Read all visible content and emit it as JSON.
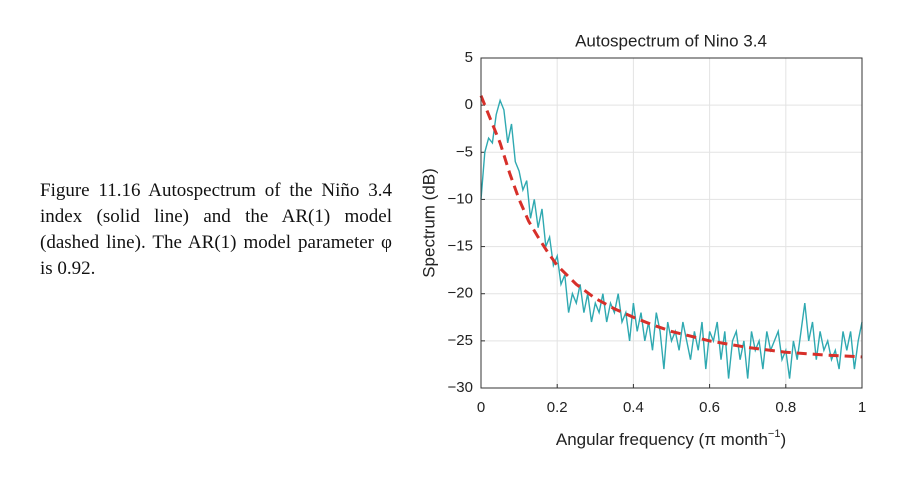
{
  "caption": "Figure 11.16 Autospectrum of the Niño 3.4 index (solid line) and the AR(1) model (dashed line). The AR(1) model parameter φ is 0.92.",
  "chart_data": {
    "type": "line",
    "title": "Autospectrum of Nino 3.4",
    "xlabel": [
      "Angular frequency  (π month",
      "−1",
      ")"
    ],
    "ylabel": "Spectrum (dB)",
    "xlim": [
      0,
      1
    ],
    "ylim": [
      -30,
      5
    ],
    "xticks": [
      0,
      0.2,
      0.4,
      0.6,
      0.8,
      1
    ],
    "yticks": [
      {
        "value": -30,
        "label": "−30"
      },
      {
        "value": -25,
        "label": "−25"
      },
      {
        "value": -20,
        "label": "−20"
      },
      {
        "value": -15,
        "label": "−15"
      },
      {
        "value": -10,
        "label": "−10"
      },
      {
        "value": -5,
        "label": "−5"
      },
      0,
      5
    ],
    "grid": true,
    "series": [
      {
        "color": "#2fa9b1",
        "line_style": "solid",
        "x": [
          0,
          0.01,
          0.02,
          0.03,
          0.04,
          0.05,
          0.06,
          0.07,
          0.08,
          0.09,
          0.1,
          0.11,
          0.12,
          0.13,
          0.14,
          0.15,
          0.16,
          0.17,
          0.18,
          0.19,
          0.2,
          0.21,
          0.22,
          0.23,
          0.24,
          0.25,
          0.26,
          0.27,
          0.28,
          0.29,
          0.3,
          0.31,
          0.32,
          0.33,
          0.34,
          0.35,
          0.36,
          0.37,
          0.38,
          0.39,
          0.4,
          0.41,
          0.42,
          0.43,
          0.44,
          0.45,
          0.46,
          0.47,
          0.48,
          0.49,
          0.5,
          0.51,
          0.52,
          0.53,
          0.54,
          0.55,
          0.56,
          0.57,
          0.58,
          0.59,
          0.6,
          0.61,
          0.62,
          0.63,
          0.64,
          0.65,
          0.66,
          0.67,
          0.68,
          0.69,
          0.7,
          0.71,
          0.72,
          0.73,
          0.74,
          0.75,
          0.76,
          0.77,
          0.78,
          0.79,
          0.8,
          0.81,
          0.82,
          0.83,
          0.84,
          0.85,
          0.86,
          0.87,
          0.88,
          0.89,
          0.9,
          0.91,
          0.92,
          0.93,
          0.94,
          0.95,
          0.96,
          0.97,
          0.98,
          0.99,
          1
        ],
        "values": [
          -10,
          -5,
          -3.5,
          -4,
          -1,
          0.5,
          -0.5,
          -4,
          -2,
          -6,
          -7,
          -9,
          -8,
          -12,
          -10,
          -13,
          -11,
          -15,
          -14,
          -17,
          -16,
          -19,
          -18,
          -22,
          -20,
          -21,
          -19,
          -22,
          -20,
          -23,
          -21,
          -22,
          -20,
          -23,
          -21,
          -22,
          -20,
          -23,
          -22,
          -25,
          -21,
          -24,
          -22,
          -25,
          -23,
          -26,
          -22,
          -24,
          -28,
          -23,
          -25,
          -24,
          -26,
          -23,
          -25,
          -27,
          -24,
          -26,
          -23,
          -28,
          -24,
          -25,
          -23,
          -27,
          -24,
          -29,
          -25,
          -24,
          -27,
          -25,
          -29,
          -24,
          -26,
          -25,
          -28,
          -24,
          -26,
          -25,
          -24,
          -27,
          -26,
          -29,
          -25,
          -27,
          -24,
          -21,
          -25,
          -23,
          -27,
          -24,
          -26,
          -25,
          -27,
          -26,
          -28,
          -24,
          -26,
          -24,
          -28,
          -25,
          -23
        ]
      },
      {
        "color": "#d7302a",
        "line_style": "dashed",
        "x": [
          0,
          0.025,
          0.05,
          0.075,
          0.1,
          0.125,
          0.15,
          0.175,
          0.2,
          0.25,
          0.3,
          0.35,
          0.4,
          0.45,
          0.5,
          0.6,
          0.7,
          0.8,
          0.9,
          1
        ],
        "values": [
          1,
          -1.5,
          -4,
          -7.2,
          -10,
          -12.3,
          -14,
          -15.6,
          -17,
          -19,
          -20.5,
          -21.6,
          -22.5,
          -23.3,
          -24,
          -25,
          -25.7,
          -26.2,
          -26.5,
          -26.7
        ]
      }
    ]
  }
}
